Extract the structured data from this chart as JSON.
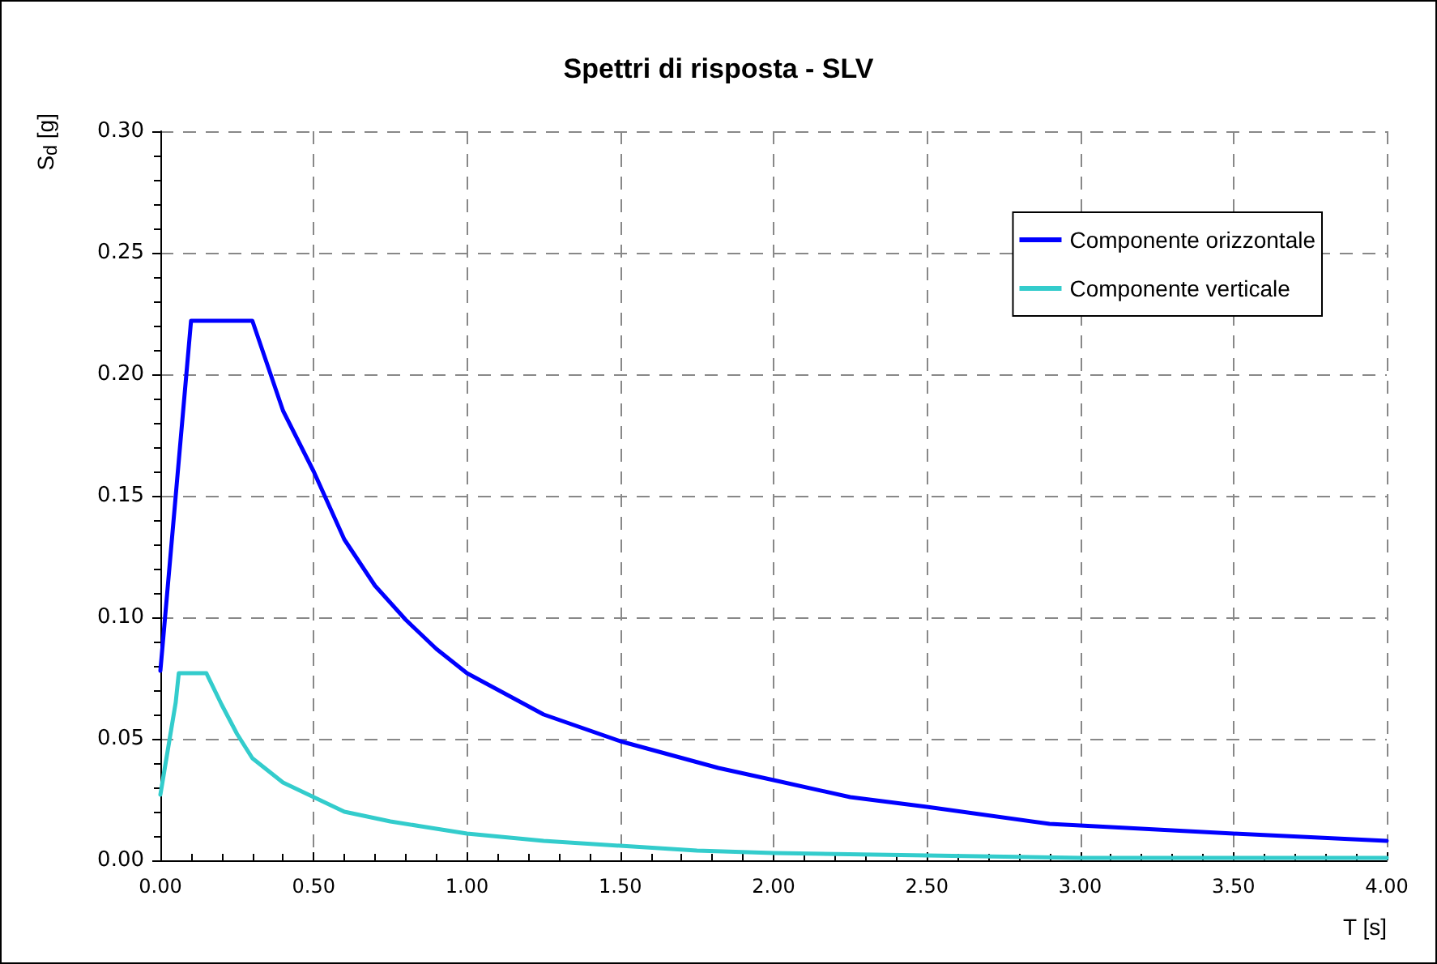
{
  "chart_data": {
    "type": "line",
    "title": "Spettri di risposta - SLV",
    "xlabel": "T [s]",
    "ylabel": "S$_{d}$ [g]",
    "xlim": [
      0,
      4
    ],
    "xticks": [
      {
        "value": 0,
        "label": "0.00"
      },
      {
        "value": 0.5,
        "label": "0.50"
      },
      {
        "value": 1,
        "label": "1.00"
      },
      {
        "value": 1.5,
        "label": "1.50"
      },
      {
        "value": 2,
        "label": "2.00"
      },
      {
        "value": 2.5,
        "label": "2.50"
      },
      {
        "value": 3,
        "label": "3.00"
      },
      {
        "value": 3.5,
        "label": "3.50"
      },
      {
        "value": 4,
        "label": "4.00"
      }
    ],
    "ylim": [
      0,
      0.3
    ],
    "yticks": [
      {
        "value": 0,
        "label": "0.00"
      },
      {
        "value": 0.05,
        "label": "0.05"
      },
      {
        "value": 0.1,
        "label": "0.10"
      },
      {
        "value": 0.15,
        "label": "0.15"
      },
      {
        "value": 0.2,
        "label": "0.20"
      },
      {
        "value": 0.25,
        "label": "0.25"
      },
      {
        "value": 0.3,
        "label": "0.30"
      }
    ],
    "grid": true,
    "legend": "top right",
    "marker": "none",
    "line_style": "solid",
    "series": [
      {
        "name": "Componente orizzontale",
        "color": "#0000ff",
        "x": [
          0,
          0.05,
          0.1,
          0.3,
          0.4,
          0.5,
          0.6,
          0.7,
          0.8,
          0.9,
          1.0,
          1.25,
          1.5,
          1.82,
          2.0,
          2.25,
          2.5,
          2.9,
          3.5,
          4.0
        ],
        "values": [
          0.078,
          0.15,
          0.222,
          0.222,
          0.185,
          0.16,
          0.132,
          0.113,
          0.099,
          0.087,
          0.077,
          0.06,
          0.049,
          0.038,
          0.033,
          0.026,
          0.022,
          0.015,
          0.011,
          0.008
        ]
      },
      {
        "name": "Componente verticale",
        "color": "#33cccc",
        "x": [
          0,
          0.05,
          0.06,
          0.15,
          0.2,
          0.25,
          0.3,
          0.4,
          0.5,
          0.6,
          0.75,
          1.0,
          1.25,
          1.5,
          1.75,
          2.0,
          2.5,
          3.0,
          4.0
        ],
        "values": [
          0.027,
          0.065,
          0.077,
          0.077,
          0.064,
          0.052,
          0.042,
          0.032,
          0.026,
          0.02,
          0.016,
          0.011,
          0.008,
          0.006,
          0.004,
          0.003,
          0.002,
          0.001,
          0.001
        ]
      }
    ]
  }
}
